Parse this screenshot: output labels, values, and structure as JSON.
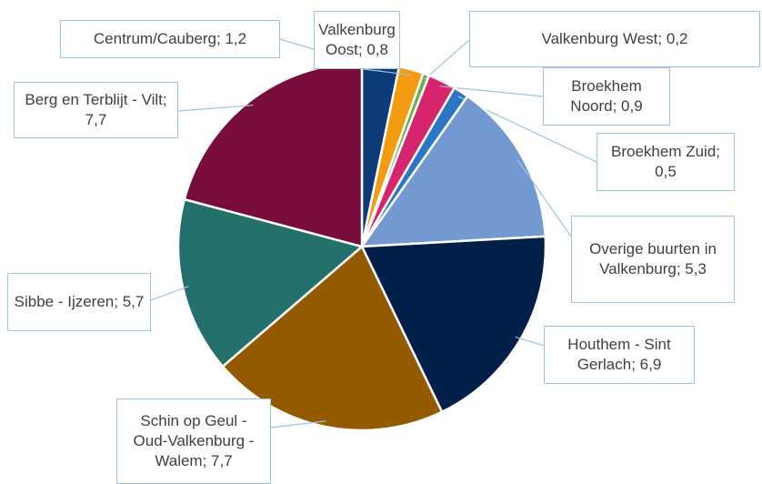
{
  "chart_data": {
    "type": "pie",
    "values": [
      1.2,
      0.8,
      0.2,
      0.9,
      0.5,
      5.3,
      6.9,
      7.7,
      5.7,
      7.7
    ],
    "value_labels": [
      "Centrum/Cauberg; 1,2",
      "Valkenburg Oost; 0,8",
      "Valkenburg West; 0,2",
      "Broekhem Noord; 0,9",
      "Broekhem Zuid; 0,5",
      "Overige buurten in Valkenburg; 5,3",
      "Houthem - Sint Gerlach; 6,9",
      "Schin op Geul - Oud-Valkenburg - Walem; 7,7",
      "Sibbe - Ijzeren; 5,7",
      "Berg en Terblijt - Vilt; 7,7"
    ],
    "colors": [
      "#0e3a78",
      "#f39c12",
      "#70ad47",
      "#d6246e",
      "#2e75c6",
      "#7399d1",
      "#00204a",
      "#935a00",
      "#24706a",
      "#780c3a"
    ]
  }
}
